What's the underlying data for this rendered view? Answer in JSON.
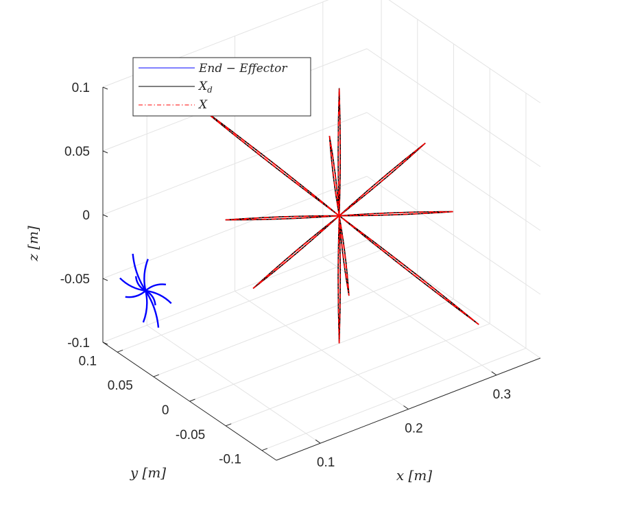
{
  "chart_data": {
    "type": "line",
    "subtype": "3d-line",
    "title": "",
    "xlabel": "x [m]",
    "ylabel": "y [m]",
    "zlabel": "z [m]",
    "xlim": [
      0.05,
      0.35
    ],
    "ylim": [
      -0.12,
      0.12
    ],
    "zlim": [
      -0.1,
      0.1
    ],
    "xticks": [
      {
        "value": 0.1,
        "label": "0.1"
      },
      {
        "value": 0.2,
        "label": "0.2"
      },
      {
        "value": 0.3,
        "label": "0.3"
      }
    ],
    "yticks": [
      {
        "value": 0.1,
        "label": "0.1"
      },
      {
        "value": 0.05,
        "label": "0.05"
      },
      {
        "value": 0,
        "label": "0"
      },
      {
        "value": -0.05,
        "label": "-0.05"
      },
      {
        "value": -0.1,
        "label": "-0.1"
      }
    ],
    "zticks": [
      {
        "value": 0.1,
        "label": "0.1"
      },
      {
        "value": 0.05,
        "label": "0.05"
      },
      {
        "value": 0,
        "label": "0"
      },
      {
        "value": -0.05,
        "label": "-0.05"
      },
      {
        "value": -0.1,
        "label": "-0.1"
      }
    ],
    "grid": true,
    "legend_position": "top-left",
    "series": [
      {
        "name": "End-Effector",
        "legend_label": "End − Effector",
        "color": "#0000ff",
        "style": "solid",
        "description": "Star of curved arcs around the origin",
        "center": [
          0.0,
          0.0,
          0.0
        ],
        "arms": [
          {
            "a": [
              -0.008,
              0.008,
              0.028
            ],
            "b": [
              0.008,
              -0.008,
              -0.028
            ]
          },
          {
            "a": [
              0.005,
              -0.022,
              0.012
            ],
            "b": [
              -0.005,
              0.022,
              -0.012
            ]
          },
          {
            "a": [
              0.015,
              0.015,
              0.015
            ],
            "b": [
              -0.015,
              -0.015,
              -0.015
            ]
          },
          {
            "a": [
              -0.016,
              -0.006,
              0.018
            ],
            "b": [
              0.016,
              0.006,
              -0.018
            ]
          },
          {
            "a": [
              0.016,
              -0.016,
              -0.008
            ],
            "b": [
              -0.016,
              0.016,
              0.008
            ]
          }
        ]
      },
      {
        "name": "X_d",
        "legend_label": "X",
        "legend_subscript": "d",
        "color": "#000000",
        "style": "solid",
        "description": "Star of thin loops centred at (0.22, 0, 0)",
        "center": [
          0.22,
          0.0,
          0.0
        ],
        "arms": [
          {
            "a": [
              0.22,
              0.0,
              0.1
            ],
            "b": [
              0.22,
              0.0,
              -0.1
            ]
          },
          {
            "a": [
              0.135,
              -0.09,
              0.12
            ],
            "b": [
              0.305,
              0.09,
              -0.12
            ]
          },
          {
            "a": [
              0.3,
              -0.06,
              0.005
            ],
            "b": [
              0.14,
              0.06,
              -0.005
            ]
          },
          {
            "a": [
              0.16,
              0.12,
              0.055
            ],
            "b": [
              0.28,
              -0.12,
              -0.055
            ]
          },
          {
            "a": [
              0.155,
              0.04,
              -0.055
            ],
            "b": [
              0.285,
              -0.04,
              0.055
            ]
          }
        ]
      },
      {
        "name": "X",
        "legend_label": "X",
        "color": "#ff0000",
        "style": "dash-dot",
        "description": "Tracked trajectory, overlapping X_d",
        "center": [
          0.22,
          0.0,
          0.0
        ],
        "arms": [
          {
            "a": [
              0.22,
              0.0,
              0.1
            ],
            "b": [
              0.22,
              0.0,
              -0.1
            ]
          },
          {
            "a": [
              0.135,
              -0.09,
              0.12
            ],
            "b": [
              0.305,
              0.09,
              -0.12
            ]
          },
          {
            "a": [
              0.3,
              -0.06,
              0.005
            ],
            "b": [
              0.14,
              0.06,
              -0.005
            ]
          },
          {
            "a": [
              0.16,
              0.12,
              0.055
            ],
            "b": [
              0.28,
              -0.12,
              -0.055
            ]
          },
          {
            "a": [
              0.155,
              0.04,
              -0.055
            ],
            "b": [
              0.285,
              -0.04,
              0.055
            ]
          }
        ]
      }
    ]
  }
}
